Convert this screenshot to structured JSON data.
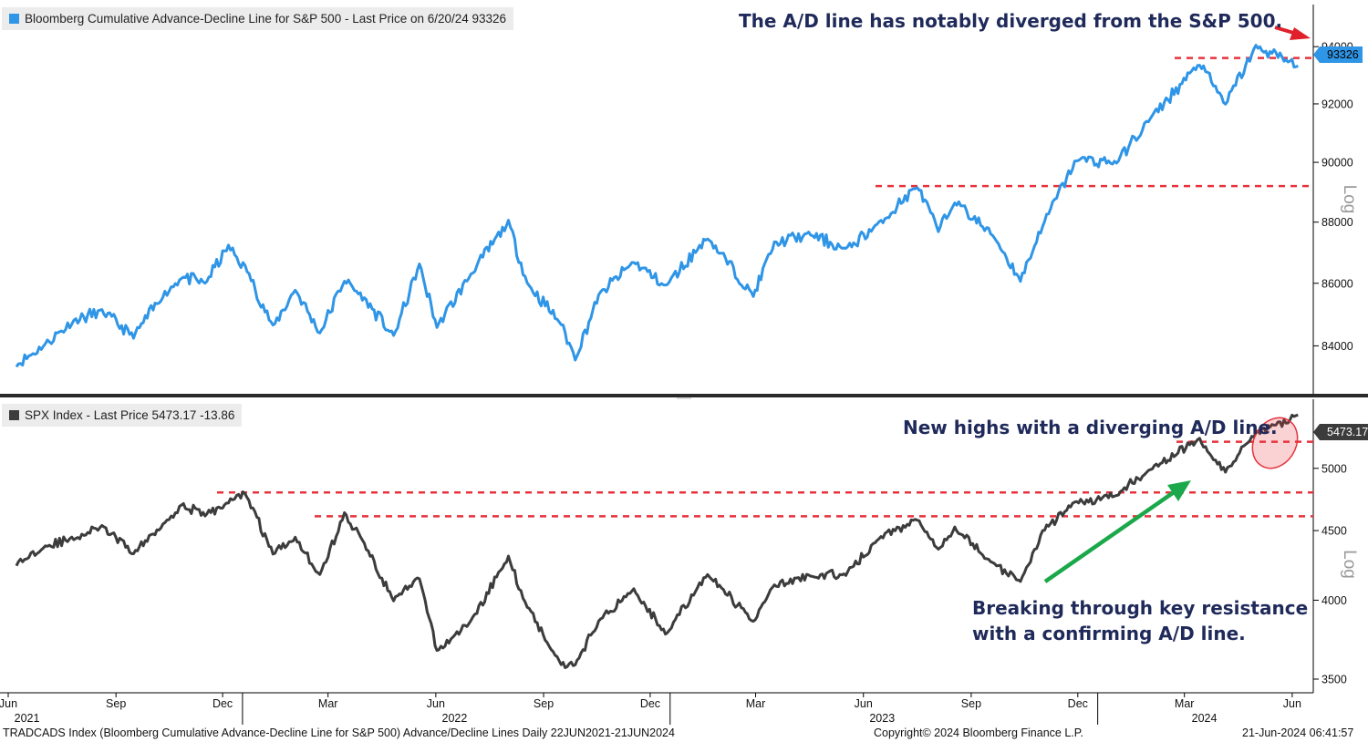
{
  "chart_data": [
    {
      "type": "line",
      "legend": "Bloomberg Cumulative Advance-Decline Line for S&P 500 - Last Price on 6/20/24 93326",
      "series": [
        {
          "name": "Bloomberg Cumulative Advance-Decline Line for S&P 500",
          "color": "#2f95e6",
          "x": [
            "2021-06-22",
            "2021-07-15",
            "2021-08-10",
            "2021-09-03",
            "2021-09-30",
            "2021-10-25",
            "2021-11-10",
            "2021-11-30",
            "2021-12-20",
            "2022-01-05",
            "2022-01-27",
            "2022-02-15",
            "2022-03-08",
            "2022-03-29",
            "2022-04-15",
            "2022-05-10",
            "2022-06-01",
            "2022-06-16",
            "2022-07-15",
            "2022-08-16",
            "2022-09-01",
            "2022-09-30",
            "2022-10-12",
            "2022-11-01",
            "2022-12-01",
            "2022-12-28",
            "2023-02-02",
            "2023-03-13",
            "2023-03-31",
            "2023-05-01",
            "2023-05-31",
            "2023-06-30",
            "2023-07-31",
            "2023-08-18",
            "2023-09-01",
            "2023-10-05",
            "2023-10-27",
            "2023-11-15",
            "2023-12-14",
            "2024-01-17",
            "2024-02-15",
            "2024-03-28",
            "2024-04-19",
            "2024-05-15",
            "2024-06-20"
          ],
          "y": [
            83400,
            84000,
            84800,
            85100,
            84300,
            85600,
            86200,
            86000,
            87200,
            86400,
            84600,
            85800,
            84400,
            86100,
            85500,
            84300,
            86600,
            84600,
            86300,
            88000,
            86000,
            84700,
            83600,
            85600,
            86700,
            85900,
            87500,
            85600,
            87300,
            87600,
            87100,
            88000,
            89200,
            87700,
            88700,
            87500,
            86100,
            87900,
            90100,
            90000,
            91500,
            93400,
            92000,
            94000,
            93326
          ]
        }
      ],
      "ylim": [
        82500,
        95500
      ],
      "y_ticks": [
        84000,
        86000,
        88000,
        90000,
        92000,
        94000
      ],
      "y_scale": "log",
      "last_price_label": "93326",
      "resistance_levels": [
        89200,
        93600
      ],
      "annotation": "The A/D line has notably diverged from the S&P 500."
    },
    {
      "type": "line",
      "legend": "SPX Index - Last Price 5473.17   -13.86",
      "series": [
        {
          "name": "SPX Index",
          "color": "#3c3c3c",
          "x": [
            "2021-06-22",
            "2021-07-15",
            "2021-08-10",
            "2021-09-03",
            "2021-09-30",
            "2021-10-25",
            "2021-11-10",
            "2021-11-30",
            "2021-12-20",
            "2022-01-03",
            "2022-01-27",
            "2022-02-15",
            "2022-03-08",
            "2022-03-29",
            "2022-04-15",
            "2022-05-10",
            "2022-06-01",
            "2022-06-16",
            "2022-07-15",
            "2022-08-16",
            "2022-09-01",
            "2022-09-30",
            "2022-10-12",
            "2022-11-01",
            "2022-12-01",
            "2022-12-28",
            "2023-02-02",
            "2023-03-13",
            "2023-03-31",
            "2023-05-01",
            "2023-05-31",
            "2023-06-30",
            "2023-07-31",
            "2023-08-18",
            "2023-09-01",
            "2023-10-05",
            "2023-10-27",
            "2023-11-15",
            "2023-12-14",
            "2024-01-17",
            "2024-02-15",
            "2024-03-28",
            "2024-04-19",
            "2024-05-15",
            "2024-06-20"
          ],
          "y": [
            4250,
            4380,
            4440,
            4530,
            4330,
            4550,
            4700,
            4620,
            4720,
            4800,
            4330,
            4450,
            4170,
            4630,
            4400,
            4000,
            4150,
            3670,
            3860,
            4300,
            3960,
            3590,
            3590,
            3860,
            4080,
            3780,
            4180,
            3860,
            4100,
            4170,
            4180,
            4450,
            4590,
            4370,
            4520,
            4250,
            4120,
            4500,
            4720,
            4780,
            5000,
            5250,
            4970,
            5300,
            5473
          ]
        }
      ],
      "ylim": [
        3420,
        5620
      ],
      "y_ticks": [
        3500,
        4000,
        4500,
        5000
      ],
      "y_scale": "log",
      "last_price_label": "5473.17",
      "resistance_levels": [
        4610,
        4800,
        5230
      ],
      "annotations": [
        "New highs with a diverging A/D line.",
        "Breaking through key resistance",
        "with a confirming A/D line."
      ]
    }
  ],
  "axis": {
    "x_months": [
      {
        "label": "Jun",
        "date": "2021-06-15"
      },
      {
        "label": "Sep",
        "date": "2021-09-15"
      },
      {
        "label": "Dec",
        "date": "2021-12-15"
      },
      {
        "label": "Mar",
        "date": "2022-03-15"
      },
      {
        "label": "Jun",
        "date": "2022-06-15"
      },
      {
        "label": "Sep",
        "date": "2022-09-15"
      },
      {
        "label": "Dec",
        "date": "2022-12-15"
      },
      {
        "label": "Mar",
        "date": "2023-03-15"
      },
      {
        "label": "Jun",
        "date": "2023-06-15"
      },
      {
        "label": "Sep",
        "date": "2023-09-15"
      },
      {
        "label": "Dec",
        "date": "2023-12-15"
      },
      {
        "label": "Mar",
        "date": "2024-03-15"
      },
      {
        "label": "Jun",
        "date": "2024-06-15"
      }
    ],
    "x_years": [
      {
        "label": "2021",
        "date": "2021-07-01"
      },
      {
        "label": "2022",
        "date": "2022-07-01"
      },
      {
        "label": "2023",
        "date": "2023-07-01"
      },
      {
        "label": "2024",
        "date": "2024-04-01"
      }
    ],
    "log_label": "Log"
  },
  "footer": {
    "left": "TRADCADS Index (Bloomberg Cumulative Advance-Decline Line for S&P 500) Advance/Decline Lines  Daily 22JUN2021-21JUN2024",
    "center": "Copyright© 2024 Bloomberg Finance L.P.",
    "right": "21-Jun-2024 06:41:57"
  },
  "colors": {
    "resistance": "#e8323c",
    "arrow_red": "#e0202a",
    "arrow_green": "#1aa84a",
    "annotation_text": "#1f2a5a",
    "highlight": "#e8323c"
  }
}
